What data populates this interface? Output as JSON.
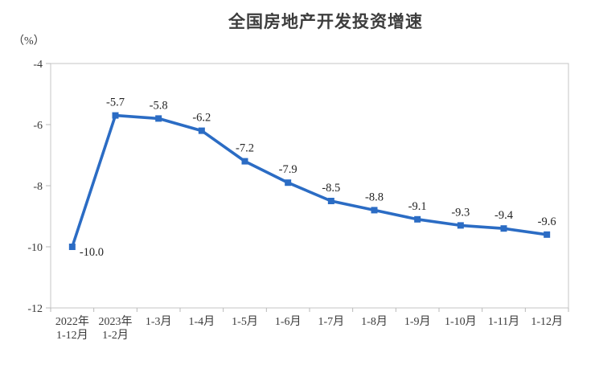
{
  "header": {
    "title": "全国房地产开发投资增速",
    "unit_label": "（%）"
  },
  "chart_data": {
    "type": "line",
    "title": "全国房地产开发投资增速",
    "ylabel": "（%）",
    "xlabel": "",
    "categories": [
      [
        "2022年",
        "1-12月"
      ],
      [
        "2023年",
        "1-2月"
      ],
      [
        "1-3月"
      ],
      [
        "1-4月"
      ],
      [
        "1-5月"
      ],
      [
        "1-6月"
      ],
      [
        "1-7月"
      ],
      [
        "1-8月"
      ],
      [
        "1-9月"
      ],
      [
        "1-10月"
      ],
      [
        "1-11月"
      ],
      [
        "1-12月"
      ]
    ],
    "values": [
      -10.0,
      -5.7,
      -5.8,
      -6.2,
      -7.2,
      -7.9,
      -8.5,
      -8.8,
      -9.1,
      -9.3,
      -9.4,
      -9.6
    ],
    "data_labels": [
      "-10.0",
      "-5.7",
      "-5.8",
      "-6.2",
      "-7.2",
      "-7.9",
      "-8.5",
      "-8.8",
      "-9.1",
      "-9.3",
      "-9.4",
      "-9.6"
    ],
    "ylim": [
      -12,
      -4
    ],
    "yticks": [
      -4,
      -6,
      -8,
      -10,
      -12
    ],
    "ytick_labels": [
      "-4",
      "-6",
      "-8",
      "-10",
      "-12"
    ],
    "grid": false,
    "legend": null,
    "marker": "square",
    "line_color": "#2b6cc4",
    "marker_color": "#2b6cc4",
    "axis_color": "#c6c6c6",
    "tick_color": "#b9b9b9",
    "text_color": "#3a3a3a",
    "data_label_color": "#242424"
  }
}
